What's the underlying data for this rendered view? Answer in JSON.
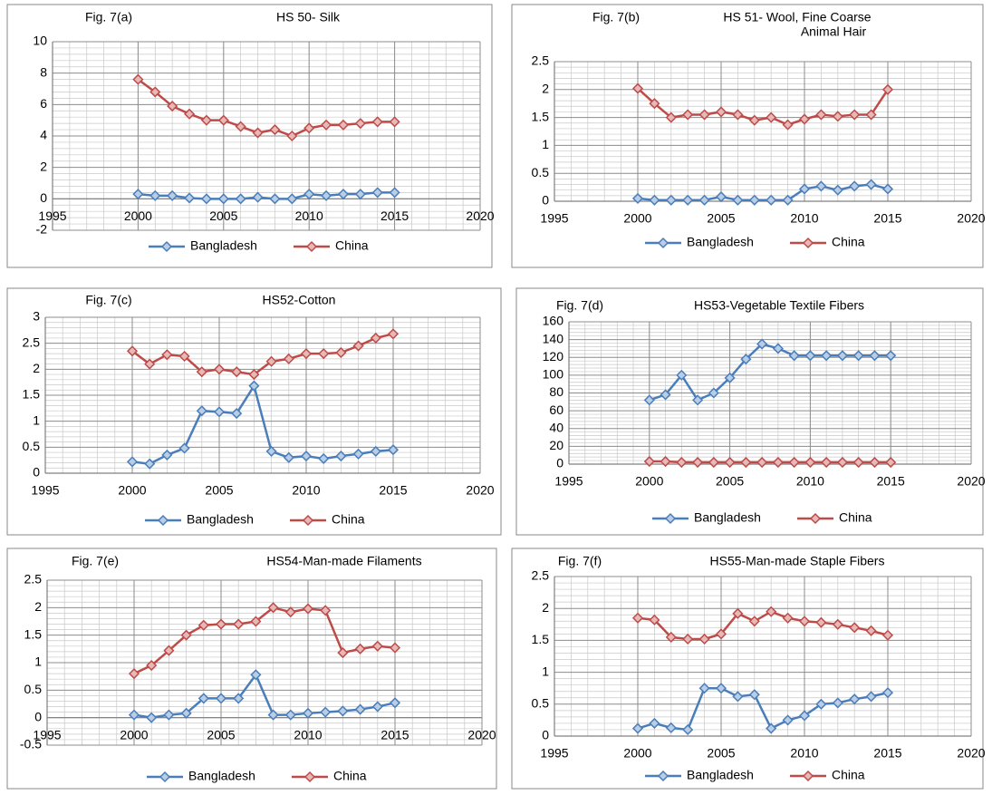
{
  "chart_data": [
    {
      "type": "line",
      "label": "Fig. 7(a)",
      "title": [
        "HS 50- Silk"
      ],
      "x": [
        2000,
        2001,
        2002,
        2003,
        2004,
        2005,
        2006,
        2007,
        2008,
        2009,
        2010,
        2011,
        2012,
        2013,
        2014,
        2015
      ],
      "series": [
        {
          "name": "Bangladesh",
          "color": "#4a7ebb",
          "values": [
            0.3,
            0.2,
            0.2,
            0.05,
            0,
            0,
            0,
            0.1,
            0,
            0,
            0.3,
            0.2,
            0.3,
            0.3,
            0.4,
            0.4
          ]
        },
        {
          "name": "China",
          "color": "#be4b48",
          "values": [
            7.6,
            6.8,
            5.9,
            5.4,
            5.0,
            5.0,
            4.6,
            4.2,
            4.4,
            4.0,
            4.5,
            4.7,
            4.7,
            4.8,
            4.9,
            4.9
          ]
        }
      ],
      "xlim": [
        1995,
        2020
      ],
      "xticks": [
        1995,
        2000,
        2005,
        2010,
        2015,
        2020
      ],
      "ylim": [
        -2,
        10
      ],
      "yticks": [
        -2,
        0,
        2,
        4,
        6,
        8,
        10
      ],
      "grid": true
    },
    {
      "type": "line",
      "label": "Fig. 7(b)",
      "title": [
        "HS 51- Wool, Fine Coarse",
        "Animal Hair"
      ],
      "x": [
        2000,
        2001,
        2002,
        2003,
        2004,
        2005,
        2006,
        2007,
        2008,
        2009,
        2010,
        2011,
        2012,
        2013,
        2014,
        2015
      ],
      "series": [
        {
          "name": "Bangladesh",
          "color": "#4a7ebb",
          "values": [
            0.05,
            0.02,
            0.02,
            0.02,
            0.02,
            0.08,
            0.02,
            0.02,
            0.02,
            0.02,
            0.22,
            0.27,
            0.2,
            0.27,
            0.3,
            0.22
          ]
        },
        {
          "name": "China",
          "color": "#be4b48",
          "values": [
            2.02,
            1.75,
            1.5,
            1.55,
            1.55,
            1.6,
            1.55,
            1.45,
            1.5,
            1.37,
            1.47,
            1.55,
            1.52,
            1.55,
            1.55,
            2.0
          ]
        }
      ],
      "xlim": [
        1995,
        2020
      ],
      "xticks": [
        1995,
        2000,
        2005,
        2010,
        2015,
        2020
      ],
      "ylim": [
        0,
        2.5
      ],
      "yticks": [
        0,
        0.5,
        1,
        1.5,
        2,
        2.5
      ],
      "grid": true
    },
    {
      "type": "line",
      "label": "Fig. 7(c)",
      "title": [
        "HS52-Cotton"
      ],
      "x": [
        2000,
        2001,
        2002,
        2003,
        2004,
        2005,
        2006,
        2007,
        2008,
        2009,
        2010,
        2011,
        2012,
        2013,
        2014,
        2015
      ],
      "series": [
        {
          "name": "Bangladesh",
          "color": "#4a7ebb",
          "values": [
            0.22,
            0.18,
            0.35,
            0.48,
            1.2,
            1.18,
            1.15,
            1.68,
            0.42,
            0.3,
            0.33,
            0.28,
            0.33,
            0.37,
            0.42,
            0.45
          ]
        },
        {
          "name": "China",
          "color": "#be4b48",
          "values": [
            2.35,
            2.1,
            2.28,
            2.25,
            1.95,
            2.0,
            1.95,
            1.9,
            2.15,
            2.2,
            2.3,
            2.3,
            2.32,
            2.45,
            2.6,
            2.68
          ]
        }
      ],
      "xlim": [
        1995,
        2020
      ],
      "xticks": [
        1995,
        2000,
        2005,
        2010,
        2015,
        2020
      ],
      "ylim": [
        0,
        3
      ],
      "yticks": [
        0,
        0.5,
        1,
        1.5,
        2,
        2.5,
        3
      ],
      "grid": true
    },
    {
      "type": "line",
      "label": "Fig. 7(d)",
      "title": [
        "HS53-Vegetable Textile Fibers"
      ],
      "x": [
        2000,
        2001,
        2002,
        2003,
        2004,
        2005,
        2006,
        2007,
        2008,
        2009,
        2010,
        2011,
        2012,
        2013,
        2014,
        2015
      ],
      "series": [
        {
          "name": "Bangladesh",
          "color": "#4a7ebb",
          "values": [
            72,
            78,
            100,
            72,
            80,
            97,
            118,
            135,
            130,
            122,
            122,
            122,
            122,
            122,
            122,
            122
          ]
        },
        {
          "name": "China",
          "color": "#be4b48",
          "values": [
            3,
            3,
            2,
            2,
            2,
            2,
            2,
            2,
            2,
            2,
            2,
            2,
            2,
            2,
            2,
            2
          ]
        }
      ],
      "xlim": [
        1995,
        2020
      ],
      "xticks": [
        1995,
        2000,
        2005,
        2010,
        2015,
        2020
      ],
      "ylim": [
        0,
        160
      ],
      "yticks": [
        0,
        20,
        40,
        60,
        80,
        100,
        120,
        140,
        160
      ],
      "grid": true
    },
    {
      "type": "line",
      "label": "Fig. 7(e)",
      "title": [
        "HS54-Man-made  Filaments"
      ],
      "x": [
        2000,
        2001,
        2002,
        2003,
        2004,
        2005,
        2006,
        2007,
        2008,
        2009,
        2010,
        2011,
        2012,
        2013,
        2014,
        2015
      ],
      "series": [
        {
          "name": "Bangladesh",
          "color": "#4a7ebb",
          "values": [
            0.05,
            0.0,
            0.05,
            0.08,
            0.35,
            0.35,
            0.35,
            0.78,
            0.05,
            0.05,
            0.08,
            0.1,
            0.12,
            0.15,
            0.2,
            0.27
          ]
        },
        {
          "name": "China",
          "color": "#be4b48",
          "values": [
            0.8,
            0.95,
            1.22,
            1.5,
            1.68,
            1.7,
            1.7,
            1.75,
            2.0,
            1.92,
            1.98,
            1.95,
            1.18,
            1.25,
            1.3,
            1.27
          ]
        }
      ],
      "xlim": [
        1995,
        2020
      ],
      "xticks": [
        1995,
        2000,
        2005,
        2010,
        2015,
        2020
      ],
      "ylim": [
        -0.5,
        2.5
      ],
      "yticks": [
        -0.5,
        0,
        0.5,
        1,
        1.5,
        2,
        2.5
      ],
      "grid": true
    },
    {
      "type": "line",
      "label": "Fig. 7(f)",
      "title": [
        "HS55-Man-made  Staple Fibers"
      ],
      "x": [
        2000,
        2001,
        2002,
        2003,
        2004,
        2005,
        2006,
        2007,
        2008,
        2009,
        2010,
        2011,
        2012,
        2013,
        2014,
        2015
      ],
      "series": [
        {
          "name": "Bangladesh",
          "color": "#4a7ebb",
          "values": [
            0.12,
            0.2,
            0.13,
            0.1,
            0.75,
            0.75,
            0.62,
            0.65,
            0.12,
            0.25,
            0.32,
            0.5,
            0.52,
            0.58,
            0.62,
            0.68
          ]
        },
        {
          "name": "China",
          "color": "#be4b48",
          "values": [
            1.85,
            1.82,
            1.55,
            1.52,
            1.52,
            1.6,
            1.92,
            1.8,
            1.95,
            1.85,
            1.8,
            1.78,
            1.75,
            1.7,
            1.65,
            1.58
          ]
        }
      ],
      "xlim": [
        1995,
        2020
      ],
      "xticks": [
        1995,
        2000,
        2005,
        2010,
        2015,
        2020
      ],
      "ylim": [
        0,
        2.5
      ],
      "yticks": [
        0,
        0.5,
        1,
        1.5,
        2,
        2.5
      ],
      "grid": true
    }
  ]
}
